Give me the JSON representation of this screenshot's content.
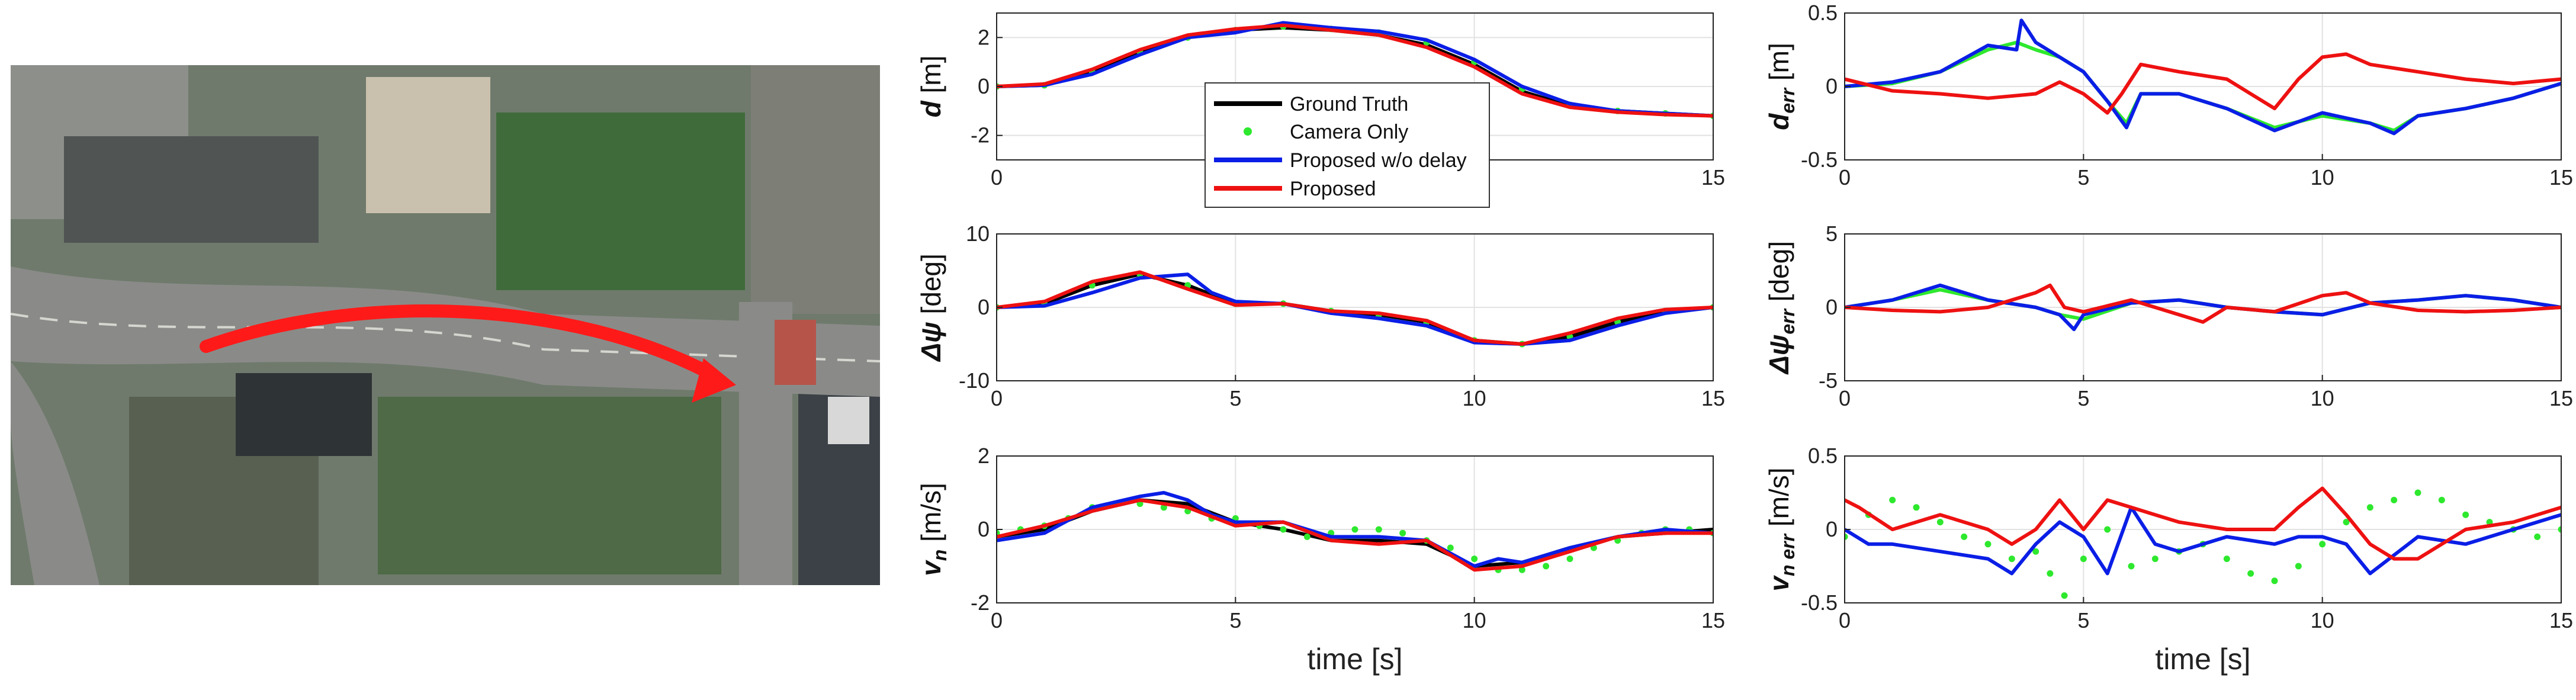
{
  "chart_data": [
    {
      "type": "line",
      "id": "d",
      "ylabel": "d [m]",
      "ylabel_main": "d",
      "ylabel_unit": " [m]",
      "xlabel": "",
      "xlim": [
        0,
        15
      ],
      "ylim": [
        -3,
        3
      ],
      "yticks": [
        -2,
        0,
        2
      ],
      "xticks": [
        0,
        5,
        10,
        15
      ],
      "series": [
        {
          "name": "Ground Truth",
          "color": "#000000",
          "style": "line",
          "x": [
            0,
            1,
            2,
            3,
            4,
            5,
            6,
            7,
            8,
            9,
            10,
            11,
            12,
            13,
            14,
            15
          ],
          "y": [
            0,
            0.05,
            0.6,
            1.4,
            2.0,
            2.3,
            2.4,
            2.3,
            2.1,
            1.7,
            0.9,
            -0.2,
            -0.8,
            -1.0,
            -1.1,
            -1.2
          ]
        },
        {
          "name": "Camera Only",
          "color": "#2ee82e",
          "style": "dots",
          "x": [
            0,
            1,
            2,
            3,
            4,
            5,
            6,
            7,
            8,
            9,
            10,
            11,
            12,
            13,
            14,
            15
          ],
          "y": [
            0,
            0.05,
            0.6,
            1.4,
            2.0,
            2.3,
            2.45,
            2.35,
            2.2,
            1.8,
            1.0,
            -0.1,
            -0.75,
            -1.0,
            -1.1,
            -1.2
          ]
        },
        {
          "name": "Proposed w/o delay",
          "color": "#0a1ee6",
          "style": "line",
          "x": [
            0,
            1,
            2,
            3,
            4,
            5,
            6,
            7,
            8,
            9,
            10,
            11,
            12,
            13,
            14,
            15
          ],
          "y": [
            0,
            0.05,
            0.5,
            1.3,
            2.0,
            2.2,
            2.6,
            2.4,
            2.25,
            1.9,
            1.1,
            0,
            -0.7,
            -1.0,
            -1.1,
            -1.2
          ]
        },
        {
          "name": "Proposed",
          "color": "#ee1111",
          "style": "line",
          "x": [
            0,
            1,
            2,
            3,
            4,
            5,
            6,
            7,
            8,
            9,
            10,
            11,
            12,
            13,
            14,
            15
          ],
          "y": [
            0,
            0.1,
            0.7,
            1.5,
            2.1,
            2.35,
            2.5,
            2.3,
            2.1,
            1.6,
            0.8,
            -0.3,
            -0.85,
            -1.05,
            -1.15,
            -1.2
          ]
        }
      ],
      "legend": [
        "Ground Truth",
        "Camera Only",
        "Proposed w/o delay",
        "Proposed"
      ],
      "legend_placement": "inside center-left"
    },
    {
      "type": "line",
      "id": "d_err",
      "ylabel": "d_err [m]",
      "ylabel_main": "d",
      "ylabel_sub": "err",
      "ylabel_unit": " [m]",
      "xlim": [
        0,
        15
      ],
      "ylim": [
        -0.5,
        0.5
      ],
      "yticks": [
        -0.5,
        0,
        0.5
      ],
      "xticks": [
        0,
        5,
        10,
        15
      ],
      "series": [
        {
          "name": "Camera Only",
          "color": "#2ee82e",
          "style": "line",
          "x": [
            0,
            1,
            2,
            3,
            3.6,
            4,
            4.5,
            5,
            5.5,
            5.9,
            6.2,
            7,
            8,
            9,
            10,
            11,
            11.5,
            12,
            13,
            14,
            15
          ],
          "y": [
            0,
            0.02,
            0.1,
            0.25,
            0.3,
            0.25,
            0.2,
            0.1,
            -0.1,
            -0.25,
            -0.05,
            -0.05,
            -0.15,
            -0.28,
            -0.2,
            -0.25,
            -0.3,
            -0.2,
            -0.15,
            -0.08,
            0.02
          ]
        },
        {
          "name": "Proposed w/o delay",
          "color": "#0a1ee6",
          "style": "line",
          "x": [
            0,
            1,
            2,
            3,
            3.6,
            3.7,
            4,
            4.5,
            5,
            5.5,
            5.9,
            6.2,
            7,
            8,
            9,
            10,
            11,
            11.5,
            12,
            13,
            14,
            15
          ],
          "y": [
            0,
            0.03,
            0.1,
            0.28,
            0.25,
            0.45,
            0.3,
            0.2,
            0.1,
            -0.1,
            -0.28,
            -0.05,
            -0.05,
            -0.15,
            -0.3,
            -0.18,
            -0.25,
            -0.32,
            -0.2,
            -0.15,
            -0.08,
            0.02
          ]
        },
        {
          "name": "Proposed",
          "color": "#ee1111",
          "style": "line",
          "x": [
            0,
            1,
            2,
            3,
            4,
            4.5,
            5,
            5.5,
            5.8,
            6.2,
            7,
            8,
            8.5,
            9,
            9.5,
            10,
            10.5,
            11,
            12,
            13,
            14,
            15
          ],
          "y": [
            0.05,
            -0.03,
            -0.05,
            -0.08,
            -0.05,
            0.03,
            -0.05,
            -0.18,
            -0.05,
            0.15,
            0.1,
            0.05,
            -0.05,
            -0.15,
            0.05,
            0.2,
            0.22,
            0.15,
            0.1,
            0.05,
            0.02,
            0.05
          ]
        }
      ]
    },
    {
      "type": "line",
      "id": "dpsi",
      "ylabel": "Δψ [deg]",
      "ylabel_main": "Δψ",
      "ylabel_unit": " [deg]",
      "xlim": [
        0,
        15
      ],
      "ylim": [
        -10,
        10
      ],
      "yticks": [
        -10,
        0,
        10
      ],
      "xticks": [
        0,
        5,
        10,
        15
      ],
      "series": [
        {
          "name": "Ground Truth",
          "color": "#000000",
          "style": "line",
          "x": [
            0,
            1,
            2,
            3,
            4,
            5,
            6,
            7,
            8,
            9,
            10,
            11,
            12,
            13,
            14,
            15
          ],
          "y": [
            0,
            0.5,
            3,
            4.5,
            3,
            0.5,
            0.5,
            -0.5,
            -1,
            -2,
            -4.5,
            -5,
            -4,
            -2,
            -0.5,
            0
          ]
        },
        {
          "name": "Camera Only",
          "color": "#2ee82e",
          "style": "dots",
          "x": [
            0,
            1,
            2,
            3,
            4,
            5,
            6,
            7,
            8,
            9,
            10,
            11,
            12,
            13,
            14,
            15
          ],
          "y": [
            0,
            0.5,
            3,
            4.5,
            3,
            0.5,
            0.5,
            -0.5,
            -1,
            -2,
            -4.5,
            -5,
            -4,
            -2,
            -0.5,
            0
          ]
        },
        {
          "name": "Proposed w/o delay",
          "color": "#0a1ee6",
          "style": "line",
          "x": [
            0,
            1,
            2,
            3,
            4,
            4.5,
            5,
            6,
            7,
            8,
            9,
            10,
            11,
            12,
            13,
            14,
            15
          ],
          "y": [
            0,
            0.2,
            2,
            4,
            4.5,
            2,
            0.8,
            0.5,
            -0.8,
            -1.5,
            -2.5,
            -4.8,
            -5,
            -4.5,
            -2.5,
            -0.8,
            0
          ]
        },
        {
          "name": "Proposed",
          "color": "#ee1111",
          "style": "line",
          "x": [
            0,
            1,
            2,
            3,
            4,
            5,
            6,
            7,
            8,
            9,
            10,
            11,
            12,
            13,
            14,
            15
          ],
          "y": [
            0,
            0.8,
            3.5,
            4.8,
            2.5,
            0.3,
            0.5,
            -0.5,
            -0.8,
            -1.8,
            -4.5,
            -5,
            -3.5,
            -1.5,
            -0.3,
            0
          ]
        }
      ]
    },
    {
      "type": "line",
      "id": "dpsi_err",
      "ylabel": "Δψ_err [deg]",
      "ylabel_main": "Δψ",
      "ylabel_sub": "err",
      "ylabel_unit": " [deg]",
      "xlim": [
        0,
        15
      ],
      "ylim": [
        -5,
        5
      ],
      "yticks": [
        -5,
        0,
        5
      ],
      "xticks": [
        0,
        5,
        10,
        15
      ],
      "series": [
        {
          "name": "Camera Only",
          "color": "#2ee82e",
          "style": "line",
          "x": [
            0,
            1,
            2,
            3,
            4,
            4.5,
            5,
            6,
            7,
            8,
            9,
            10,
            11,
            12,
            13,
            14,
            15
          ],
          "y": [
            0,
            0.5,
            1.2,
            0.5,
            0,
            -0.5,
            -0.8,
            0.3,
            0.5,
            0,
            -0.3,
            -0.5,
            0.3,
            0.5,
            0.8,
            0.5,
            0
          ]
        },
        {
          "name": "Proposed w/o delay",
          "color": "#0a1ee6",
          "style": "line",
          "x": [
            0,
            1,
            2,
            3,
            4,
            4.5,
            4.8,
            5,
            6,
            7,
            8,
            9,
            10,
            11,
            12,
            13,
            14,
            15
          ],
          "y": [
            0,
            0.5,
            1.5,
            0.5,
            0,
            -0.5,
            -1.5,
            -0.5,
            0.3,
            0.5,
            0,
            -0.3,
            -0.5,
            0.3,
            0.5,
            0.8,
            0.5,
            0
          ]
        },
        {
          "name": "Proposed",
          "color": "#ee1111",
          "style": "line",
          "x": [
            0,
            1,
            2,
            3,
            4,
            4.3,
            4.6,
            5,
            6,
            7,
            7.5,
            8,
            9,
            10,
            10.5,
            11,
            12,
            13,
            14,
            15
          ],
          "y": [
            0,
            -0.2,
            -0.3,
            0,
            1,
            1.5,
            0,
            -0.3,
            0.5,
            -0.5,
            -1,
            0,
            -0.3,
            0.8,
            1,
            0.3,
            -0.2,
            -0.3,
            -0.2,
            0
          ]
        }
      ]
    },
    {
      "type": "line",
      "id": "vn",
      "ylabel": "v_n [m/s]",
      "ylabel_main": "v",
      "ylabel_sub": "n",
      "ylabel_unit": " [m/s]",
      "xlabel": "time [s]",
      "xlim": [
        0,
        15
      ],
      "ylim": [
        -2,
        2
      ],
      "yticks": [
        -2,
        0,
        2
      ],
      "xticks": [
        0,
        5,
        10,
        15
      ],
      "series": [
        {
          "name": "Ground Truth",
          "color": "#000000",
          "style": "line",
          "x": [
            0,
            1,
            2,
            3,
            4,
            5,
            6,
            7,
            8,
            9,
            10,
            11,
            12,
            13,
            14,
            15
          ],
          "y": [
            -0.2,
            0,
            0.5,
            0.8,
            0.7,
            0.2,
            0,
            -0.3,
            -0.3,
            -0.4,
            -1.0,
            -0.9,
            -0.5,
            -0.2,
            -0.1,
            0
          ]
        },
        {
          "name": "Camera Only",
          "color": "#2ee82e",
          "style": "dots",
          "x": [
            0,
            0.5,
            1,
            1.5,
            2,
            2.5,
            3,
            3.5,
            4,
            4.5,
            5,
            5.5,
            6,
            6.5,
            7,
            7.5,
            8,
            8.5,
            9,
            9.5,
            10,
            10.5,
            11,
            11.5,
            12,
            12.5,
            13,
            13.5,
            14,
            14.5,
            15
          ],
          "y": [
            -0.1,
            0,
            0.1,
            0.3,
            0.6,
            0.7,
            0.7,
            0.6,
            0.5,
            0.3,
            0.3,
            0.1,
            0,
            -0.2,
            -0.1,
            0,
            0,
            -0.1,
            -0.3,
            -0.5,
            -0.8,
            -1.1,
            -1.1,
            -1.0,
            -0.8,
            -0.5,
            -0.3,
            -0.1,
            0,
            0,
            -0.1
          ]
        },
        {
          "name": "Proposed w/o delay",
          "color": "#0a1ee6",
          "style": "line",
          "x": [
            0,
            1,
            2,
            3,
            3.5,
            4,
            4.5,
            5,
            6,
            7,
            8,
            9,
            10,
            10.5,
            11,
            12,
            13,
            14,
            15
          ],
          "y": [
            -0.3,
            -0.1,
            0.6,
            0.9,
            1.0,
            0.8,
            0.4,
            0.2,
            0.2,
            -0.2,
            -0.2,
            -0.3,
            -1.0,
            -0.8,
            -0.9,
            -0.5,
            -0.2,
            0,
            -0.1
          ]
        },
        {
          "name": "Proposed",
          "color": "#ee1111",
          "style": "line",
          "x": [
            0,
            1,
            2,
            3,
            4,
            5,
            6,
            7,
            8,
            9,
            10,
            11,
            12,
            13,
            14,
            15
          ],
          "y": [
            -0.2,
            0.1,
            0.5,
            0.8,
            0.6,
            0.1,
            0.2,
            -0.3,
            -0.4,
            -0.3,
            -1.1,
            -1.0,
            -0.6,
            -0.2,
            -0.1,
            -0.1
          ]
        }
      ]
    },
    {
      "type": "line",
      "id": "vn_err",
      "ylabel": "v_n err [m/s]",
      "ylabel_main": "v",
      "ylabel_sub": "n err",
      "ylabel_unit": " [m/s]",
      "xlabel": "time [s]",
      "xlim": [
        0,
        15
      ],
      "ylim": [
        -0.5,
        0.5
      ],
      "yticks": [
        -0.5,
        0,
        0.5
      ],
      "xticks": [
        0,
        5,
        10,
        15
      ],
      "series": [
        {
          "name": "Camera Only",
          "color": "#2ee82e",
          "style": "dots",
          "x": [
            0,
            0.5,
            1,
            1.5,
            2,
            2.5,
            3,
            3.5,
            4,
            4.3,
            4.6,
            5,
            5.5,
            6,
            6.5,
            7,
            7.5,
            8,
            8.5,
            9,
            9.5,
            10,
            10.5,
            11,
            11.5,
            12,
            12.5,
            13,
            13.5,
            14,
            14.5,
            15
          ],
          "y": [
            -0.05,
            0.1,
            0.2,
            0.15,
            0.05,
            -0.05,
            -0.1,
            -0.2,
            -0.15,
            -0.3,
            -0.45,
            -0.2,
            0,
            -0.25,
            -0.2,
            -0.15,
            -0.1,
            -0.2,
            -0.3,
            -0.35,
            -0.25,
            -0.1,
            0.05,
            0.15,
            0.2,
            0.25,
            0.2,
            0.1,
            0.05,
            0,
            -0.05,
            0
          ]
        },
        {
          "name": "Proposed w/o delay",
          "color": "#0a1ee6",
          "style": "line",
          "x": [
            0,
            0.5,
            1,
            2,
            3,
            3.5,
            4,
            4.5,
            5,
            5.5,
            6,
            6.5,
            7,
            8,
            9,
            9.5,
            10,
            10.5,
            11,
            12,
            13,
            14,
            15
          ],
          "y": [
            0,
            -0.1,
            -0.1,
            -0.15,
            -0.2,
            -0.3,
            -0.1,
            0.05,
            -0.05,
            -0.3,
            0.15,
            -0.1,
            -0.15,
            -0.05,
            -0.1,
            -0.05,
            -0.05,
            -0.1,
            -0.3,
            -0.05,
            -0.1,
            0,
            0.1
          ]
        },
        {
          "name": "Proposed",
          "color": "#ee1111",
          "style": "line",
          "x": [
            0,
            0.3,
            1,
            2,
            3,
            3.5,
            4,
            4.5,
            5,
            5.5,
            6,
            6.5,
            7,
            8,
            9,
            9.5,
            10,
            10.5,
            11,
            11.5,
            12,
            13,
            14,
            15
          ],
          "y": [
            0.2,
            0.15,
            0,
            0.1,
            0,
            -0.1,
            0,
            0.2,
            0,
            0.2,
            0.15,
            0.1,
            0.05,
            0,
            0,
            0.15,
            0.28,
            0.1,
            -0.1,
            -0.2,
            -0.2,
            0,
            0.05,
            0.15
          ]
        }
      ]
    }
  ],
  "map_image": {
    "description_shown": false,
    "arrow_color": "#ff1a1a"
  }
}
